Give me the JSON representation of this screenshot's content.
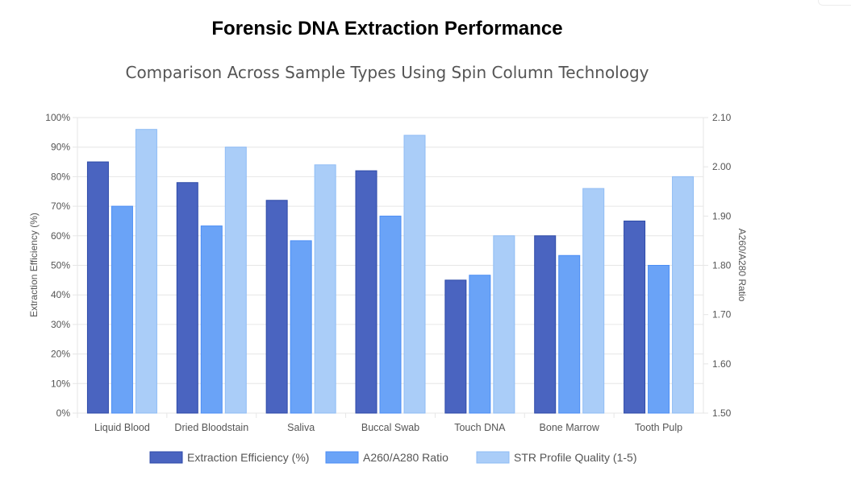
{
  "chart_data": {
    "type": "bar",
    "title": "Forensic DNA Extraction Performance",
    "subtitle": "Comparison Across Sample Types Using Spin Column Technology",
    "categories": [
      "Liquid Blood",
      "Dried Bloodstain",
      "Saliva",
      "Buccal Swab",
      "Touch DNA",
      "Bone Marrow",
      "Tooth Pulp"
    ],
    "series": [
      {
        "name": "Extraction Efficiency (%)",
        "axis": "left",
        "color": "#4a64c0",
        "values": [
          85,
          78,
          72,
          82,
          45,
          60,
          65
        ]
      },
      {
        "name": "A260/A280 Ratio",
        "axis": "right",
        "color": "#6aa3f7",
        "values": [
          1.92,
          1.88,
          1.85,
          1.9,
          1.78,
          1.82,
          1.8
        ]
      },
      {
        "name": "STR Profile Quality (1-5)",
        "axis": "left",
        "color": "#aacdf8",
        "values": [
          96,
          90,
          84,
          94,
          60,
          76,
          80
        ]
      }
    ],
    "y_left": {
      "label": "Extraction Efficiency (%)",
      "min": 0,
      "max": 100,
      "step": 10,
      "ticks": [
        "0%",
        "10%",
        "20%",
        "30%",
        "40%",
        "50%",
        "60%",
        "70%",
        "80%",
        "90%",
        "100%"
      ]
    },
    "y_right": {
      "label": "A260/A280 Ratio",
      "min": 1.5,
      "max": 2.1,
      "step": 0.1,
      "ticks": [
        "1.50",
        "1.60",
        "1.70",
        "1.80",
        "1.90",
        "2.00",
        "2.10"
      ]
    },
    "grid": true,
    "legend": "bottom"
  }
}
